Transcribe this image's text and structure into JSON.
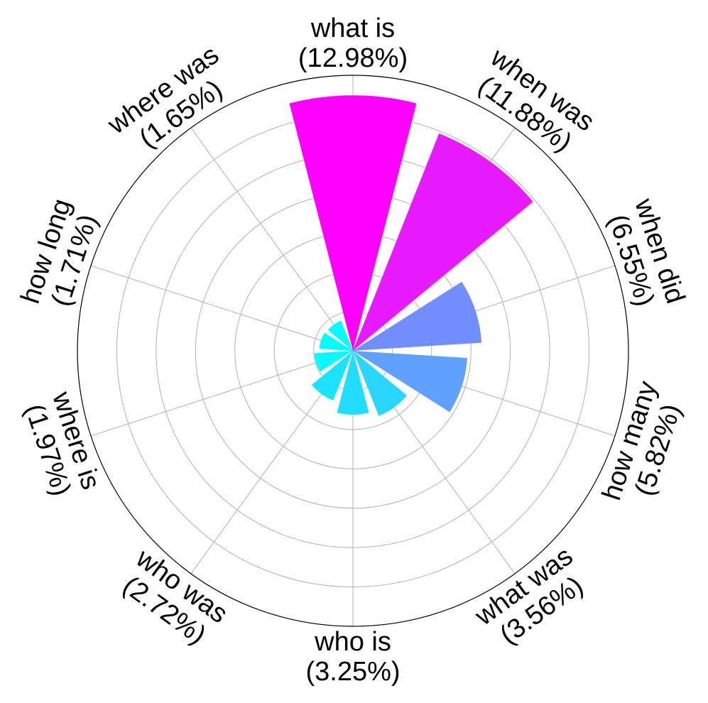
{
  "chart_data": {
    "type": "polar-bar",
    "title": "",
    "grid": true,
    "rmax": 14,
    "ring_step": 2,
    "direction": "clockwise",
    "start_angle": "top",
    "categories": [
      {
        "name": "what is",
        "pct": "(12.98%)",
        "value": 12.98,
        "color": "#ff00ff"
      },
      {
        "name": "when was",
        "pct": "(11.88%)",
        "value": 11.88,
        "color": "#e81aff"
      },
      {
        "name": "when did",
        "pct": "(6.55%)",
        "value": 6.55,
        "color": "#738dff"
      },
      {
        "name": "how many",
        "pct": "(5.82%)",
        "value": 5.82,
        "color": "#60a0ff"
      },
      {
        "name": "what was",
        "pct": "(3.56%)",
        "value": 3.56,
        "color": "#2ad5ff"
      },
      {
        "name": "who is",
        "pct": "(3.25%)",
        "value": 3.25,
        "color": "#22ddff"
      },
      {
        "name": "who was",
        "pct": "(2.72%)",
        "value": 2.72,
        "color": "#1ce3ff"
      },
      {
        "name": "where is",
        "pct": "(1.97%)",
        "value": 1.97,
        "color": "#06f9ff"
      },
      {
        "name": "how long",
        "pct": "(1.71%)",
        "value": 1.71,
        "color": "#02fdff"
      },
      {
        "name": "where was",
        "pct": "(1.65%)",
        "value": 1.65,
        "color": "#00ffff"
      }
    ]
  }
}
